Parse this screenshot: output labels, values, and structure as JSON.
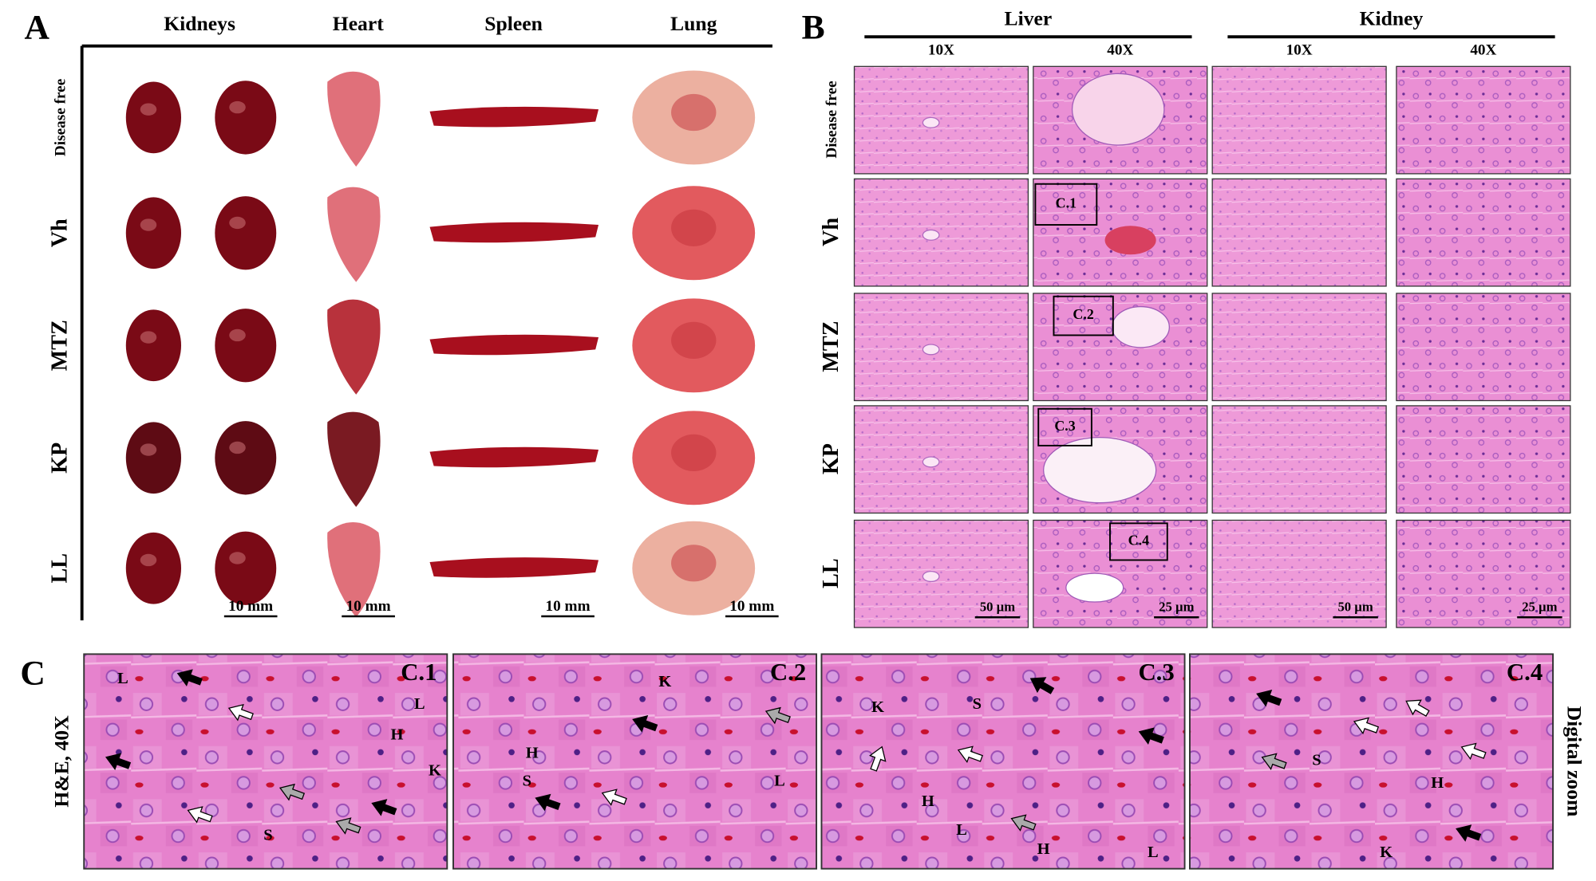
{
  "panel_a": {
    "label": "A",
    "columns": [
      "Kidneys",
      "Heart",
      "Spleen",
      "Lung"
    ],
    "rows": [
      "Disease free",
      "Vh",
      "MTZ",
      "KP",
      "LL"
    ],
    "scale_bars": [
      "10 mm",
      "10 mm",
      "10 mm",
      "10 mm"
    ]
  },
  "panel_b": {
    "label": "B",
    "groups": [
      "Liver",
      "Kidney"
    ],
    "magnifications": [
      "10X",
      "40X",
      "10X",
      "40X"
    ],
    "rows": [
      "Disease free",
      "Vh",
      "MTZ",
      "KP",
      "LL"
    ],
    "insets": [
      "C.1",
      "C.2",
      "C.3",
      "C.4"
    ],
    "scale_bars": [
      "50 µm",
      "25 µm",
      "50 µm",
      "25 µm"
    ]
  },
  "panel_c": {
    "label": "C",
    "stain": "H&E,  40X",
    "side_label": "Digital zoom",
    "panels": [
      {
        "title": "C.1",
        "markers": [
          "L",
          "L",
          "H",
          "K",
          "S"
        ]
      },
      {
        "title": "C.2",
        "markers": [
          "K",
          "H",
          "S",
          "L"
        ]
      },
      {
        "title": "C.3",
        "markers": [
          "K",
          "S",
          "H",
          "L",
          "H",
          "L"
        ]
      },
      {
        "title": "C.4",
        "markers": [
          "S",
          "H",
          "K"
        ]
      }
    ]
  }
}
